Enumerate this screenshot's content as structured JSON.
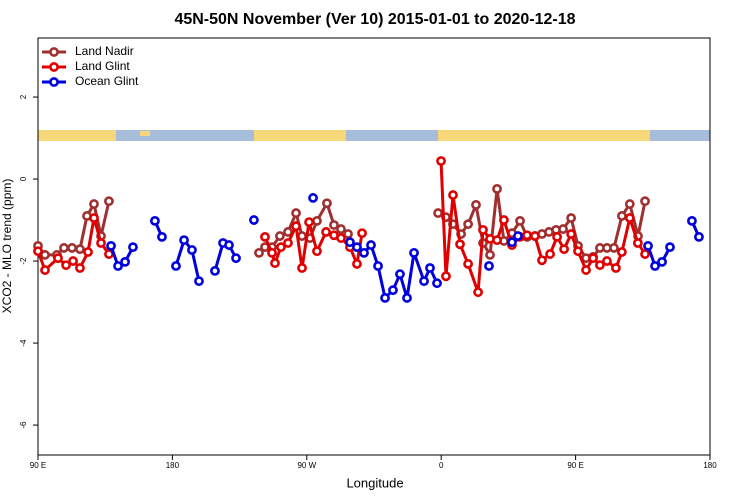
{
  "chart_data": {
    "type": "line",
    "title": "45N-50N November (Ver 10)   2015-01-01 to 2020-12-18",
    "xlabel": "Longitude",
    "ylabel": "XCO2 - MLO trend (ppm)",
    "xlim": [
      90,
      540
    ],
    "ylim": [
      -6.73,
      3.44
    ],
    "xticks": [
      {
        "value": 90,
        "label": "90 E"
      },
      180,
      {
        "value": 270,
        "label": "90 W"
      },
      {
        "value": 360,
        "label": "0"
      },
      {
        "value": 450,
        "label": "90 E"
      },
      {
        "value": 540,
        "label": "180"
      }
    ],
    "yticks": [
      -6,
      -4,
      -2,
      0,
      2
    ],
    "legend": "top-left",
    "series": [
      {
        "name": "Land Nadir",
        "color": "#a03030",
        "x": [
          90,
          94.7,
          102.7,
          107.4,
          112.8,
          118.1,
          122.8,
          127.5,
          132.2,
          137.5,
          null,
          238,
          242,
          246.7,
          252,
          257.4,
          262.8,
          266.8,
          272.1,
          276.8,
          283.5,
          288.2,
          292.9,
          297.6,
          null,
          357.9,
          363.2,
          367.9,
          373.3,
          378,
          383.3,
          388,
          392.7,
          397.4,
          402,
          407.4,
          412.8,
          417.5,
          422.8,
          427.5,
          432.2,
          436.9,
          441.6,
          447,
          451.6,
          457,
          461.7,
          466.3,
          471,
          475.7,
          481,
          486.3,
          491.8,
          496.5
        ],
        "values": [
          -1.63,
          -1.85,
          -1.85,
          -1.68,
          -1.68,
          -1.71,
          -0.9,
          -0.61,
          -1.39,
          -0.54,
          null,
          -1.8,
          -1.66,
          -1.66,
          -1.39,
          -1.29,
          -0.83,
          -1.39,
          -1.44,
          -1.02,
          -0.59,
          -1.12,
          -1.22,
          -1.34,
          null,
          -0.83,
          -0.93,
          -1.1,
          -1.34,
          -1.1,
          -0.63,
          -1.56,
          -1.85,
          -0.24,
          -1.51,
          -1.32,
          -1.02,
          -1.41,
          -1.39,
          -1.34,
          -1.29,
          -1.24,
          -1.22,
          -0.95,
          -1.63,
          -1.93,
          -1.9,
          -1.68,
          -1.68,
          -1.68,
          -0.9,
          -0.61,
          -1.39,
          -0.54
        ]
      },
      {
        "name": "Land Glint",
        "color": "#e00000",
        "x": [
          90,
          94.7,
          103.4,
          108.8,
          113.5,
          118.1,
          123.5,
          127.5,
          132.2,
          137.5,
          null,
          242,
          246.7,
          248.7,
          252.7,
          257.4,
          262.8,
          266.8,
          271.5,
          276.8,
          282.9,
          288.2,
          292.9,
          298.9,
          303.6,
          307,
          null,
          359.9,
          363.2,
          367.9,
          372.6,
          378,
          384.7,
          388,
          392.7,
          397.4,
          402,
          407.4,
          412.8,
          417.5,
          422.8,
          427.5,
          432.9,
          437.6,
          442.3,
          447,
          451.6,
          457,
          461.7,
          466.3,
          471,
          477,
          481,
          486.3,
          491.7,
          496.5
        ],
        "values": [
          -1.76,
          -2.22,
          -1.93,
          -2.1,
          -2,
          -2.17,
          -1.78,
          -0.95,
          -1.56,
          -1.83,
          null,
          -1.41,
          -1.8,
          -2.05,
          -1.66,
          -1.56,
          -1.15,
          -2.17,
          -1.05,
          -1.76,
          -1.29,
          -1.37,
          -1.44,
          -1.66,
          -2.07,
          -1.32,
          null,
          0.44,
          -2.37,
          -0.39,
          -1.59,
          -2.07,
          -2.76,
          -1.24,
          -1.46,
          -1.49,
          -1,
          -1.61,
          -1.41,
          -1.37,
          -1.39,
          -1.98,
          -1.83,
          -1.41,
          -1.71,
          -1.34,
          -1.76,
          -2.22,
          -1.93,
          -2.1,
          -2,
          -2.17,
          -1.78,
          -0.95,
          -1.56,
          -1.83
        ]
      },
      {
        "name": "Ocean Glint",
        "color": "#0000dd",
        "x": [
          138.9,
          143.6,
          148.3,
          153.6,
          null,
          168.3,
          173,
          null,
          182.4,
          187.8,
          193.1,
          197.8,
          null,
          208.5,
          213.9,
          217.9,
          222.6,
          null,
          234.6,
          null,
          274.2,
          null,
          298.9,
          303.6,
          308.3,
          313,
          317.7,
          322.4,
          327.7,
          332.4,
          337.1,
          341.8,
          348.5,
          352.5,
          357.2,
          null,
          392,
          null,
          407.4,
          411.4,
          null,
          498.5,
          503.2,
          507.9,
          513.2,
          null,
          527.9,
          532.6
        ],
        "values": [
          -1.63,
          -2.12,
          -2.02,
          -1.66,
          null,
          -1.02,
          -1.41,
          null,
          -2.12,
          -1.49,
          -1.73,
          -2.49,
          null,
          -2.24,
          -1.56,
          -1.61,
          -1.93,
          null,
          -1,
          null,
          -0.46,
          null,
          -1.54,
          -1.66,
          -1.8,
          -1.61,
          -2.12,
          -2.9,
          -2.71,
          -2.32,
          -2.9,
          -1.8,
          -2.49,
          -2.17,
          -2.54,
          null,
          -2.12,
          null,
          -1.54,
          -1.39,
          null,
          -1.63,
          -2.12,
          -2.02,
          -1.66,
          null,
          -1.02,
          -1.41
        ]
      }
    ]
  }
}
